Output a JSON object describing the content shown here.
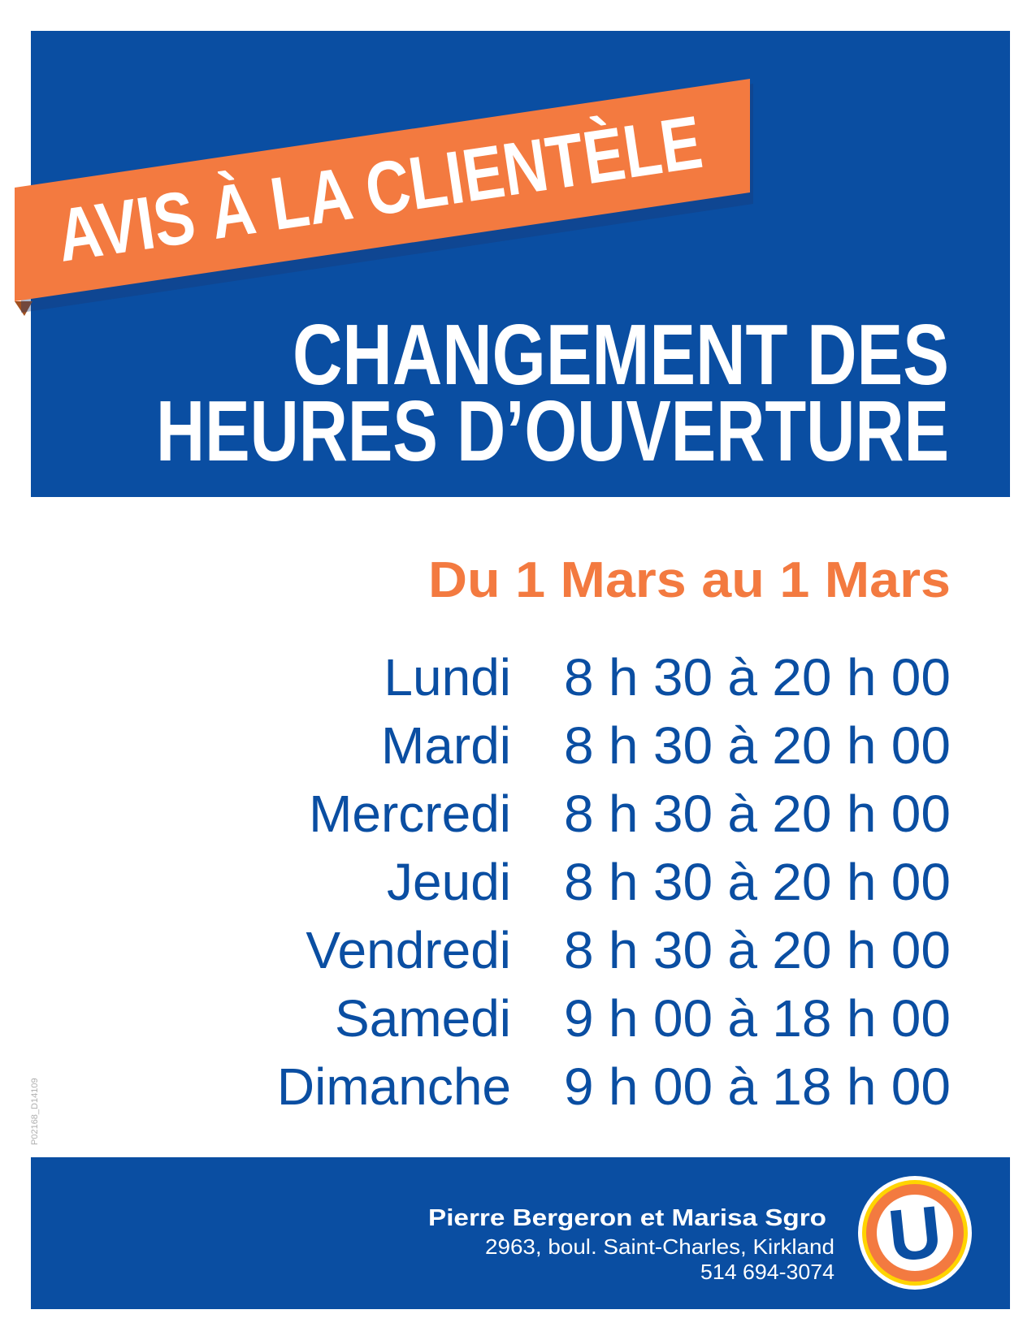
{
  "colors": {
    "brand_blue": "#0a4ea2",
    "accent_orange": "#f37a40",
    "logo_yellow": "#ffd400"
  },
  "banner": {
    "ribbon": "AVIS À LA CLIENTÈLE",
    "title_line1": "CHANGEMENT DES",
    "title_line2": "HEURES D’OUVERTURE"
  },
  "period": "Du 1 Mars au 1 Mars",
  "schedule": [
    {
      "day": "Lundi",
      "hours": "8 h 30 à 20 h 00"
    },
    {
      "day": "Mardi",
      "hours": "8 h 30 à 20 h 00"
    },
    {
      "day": "Mercredi",
      "hours": "8 h 30 à 20 h 00"
    },
    {
      "day": "Jeudi",
      "hours": "8 h 30 à 20 h 00"
    },
    {
      "day": "Vendredi",
      "hours": "8 h 30 à 20 h 00"
    },
    {
      "day": "Samedi",
      "hours": "9 h 00 à 18 h 00"
    },
    {
      "day": "Dimanche",
      "hours": "9 h 00 à 18 h 00"
    }
  ],
  "side_code": "P02168_D14109",
  "footer": {
    "owners": "Pierre Bergeron et Marisa Sgro",
    "address": "2963, boul. Saint-Charles, Kirkland",
    "phone": "514 694-3074",
    "logo_letter": "U"
  }
}
